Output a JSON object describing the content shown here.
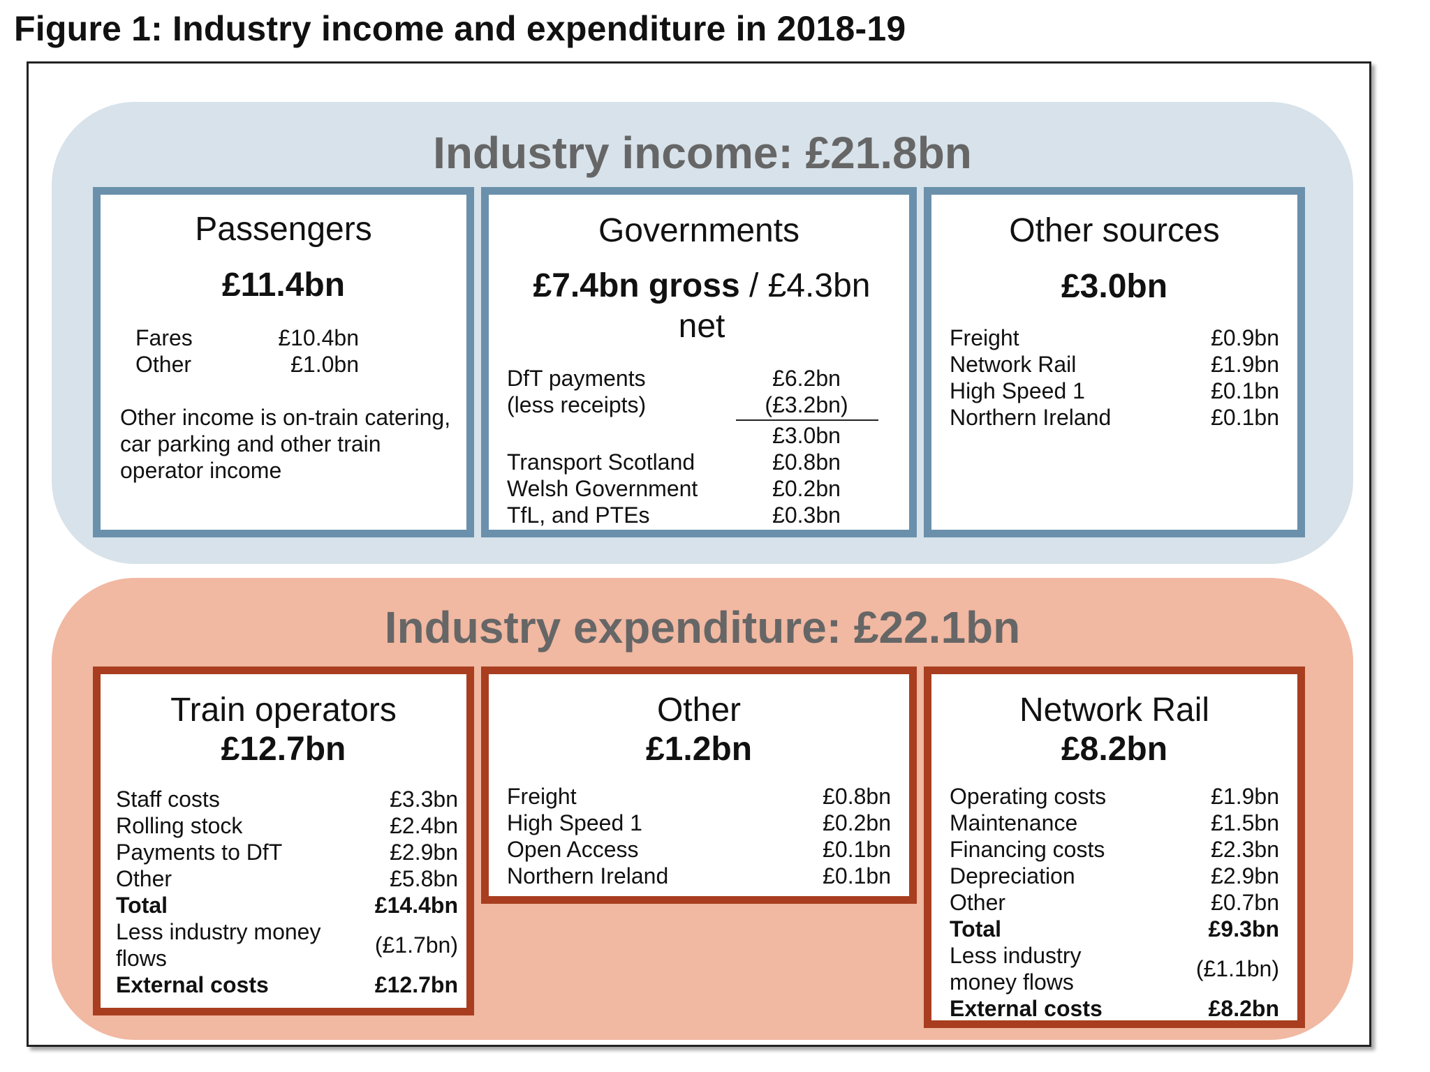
{
  "figure_title": "Figure 1: Industry income and expenditure in 2018-19",
  "income": {
    "title": "Industry income: £21.8bn",
    "passengers": {
      "head": "Passengers",
      "amount": "£11.4bn",
      "rows": [
        {
          "label": "Fares",
          "value": "£10.4bn"
        },
        {
          "label": "Other",
          "value": "£1.0bn"
        }
      ],
      "note": "Other income is on-train catering, car parking and other train operator income"
    },
    "governments": {
      "head": "Governments",
      "amount_gross": "£7.4bn gross",
      "amount_sep": " / ",
      "amount_net": "£4.3bn net",
      "dft_label_1": "DfT payments",
      "dft_label_2": "(less receipts)",
      "dft_value_1": "£6.2bn",
      "dft_value_2": "(£3.2bn)",
      "dft_subtotal": "£3.0bn",
      "rows": [
        {
          "label": "Transport Scotland",
          "value": "£0.8bn"
        },
        {
          "label": "Welsh Government",
          "value": "£0.2bn"
        },
        {
          "label": "TfL, and PTEs",
          "value": "£0.3bn"
        }
      ]
    },
    "other_sources": {
      "head": "Other sources",
      "amount": "£3.0bn",
      "rows": [
        {
          "label": "Freight",
          "value": "£0.9bn"
        },
        {
          "label": "Network Rail",
          "value": "£1.9bn"
        },
        {
          "label": "High Speed 1",
          "value": "£0.1bn"
        },
        {
          "label": "Northern Ireland",
          "value": "£0.1bn"
        }
      ]
    }
  },
  "expenditure": {
    "title": "Industry expenditure: £22.1bn",
    "train_operators": {
      "head": "Train operators",
      "amount": "£12.7bn",
      "rows": [
        {
          "label": "Staff costs",
          "value": "£3.3bn"
        },
        {
          "label": "Rolling stock",
          "value": "£2.4bn"
        },
        {
          "label": "Payments to DfT",
          "value": "£2.9bn"
        },
        {
          "label": "Other",
          "value": "£5.8bn"
        }
      ],
      "total_label": "Total",
      "total_value": "£14.4bn",
      "less_label": "Less industry money flows",
      "less_value": "(£1.7bn)",
      "external_label": "External costs",
      "external_value": "£12.7bn"
    },
    "other": {
      "head": "Other",
      "amount": "£1.2bn",
      "rows": [
        {
          "label": "Freight",
          "value": "£0.8bn"
        },
        {
          "label": "High Speed 1",
          "value": "£0.2bn"
        },
        {
          "label": "Open Access",
          "value": "£0.1bn"
        },
        {
          "label": "Northern Ireland",
          "value": "£0.1bn"
        }
      ]
    },
    "network_rail": {
      "head": "Network Rail",
      "amount": "£8.2bn",
      "rows": [
        {
          "label": "Operating costs",
          "value": "£1.9bn"
        },
        {
          "label": "Maintenance",
          "value": "£1.5bn"
        },
        {
          "label": "Financing costs",
          "value": "£2.3bn"
        },
        {
          "label": "Depreciation",
          "value": "£2.9bn"
        },
        {
          "label": "Other",
          "value": "£0.7bn"
        }
      ],
      "total_label": "Total",
      "total_value": "£9.3bn",
      "less_label": "Less industry money flows",
      "less_value": "(£1.1bn)",
      "external_label": "External costs",
      "external_value": "£8.2bn"
    }
  },
  "colors": {
    "income_panel": "#d7e2ea",
    "income_border": "#6a90ac",
    "expenditure_panel": "#f1b8a2",
    "expenditure_border": "#a83e1f"
  }
}
